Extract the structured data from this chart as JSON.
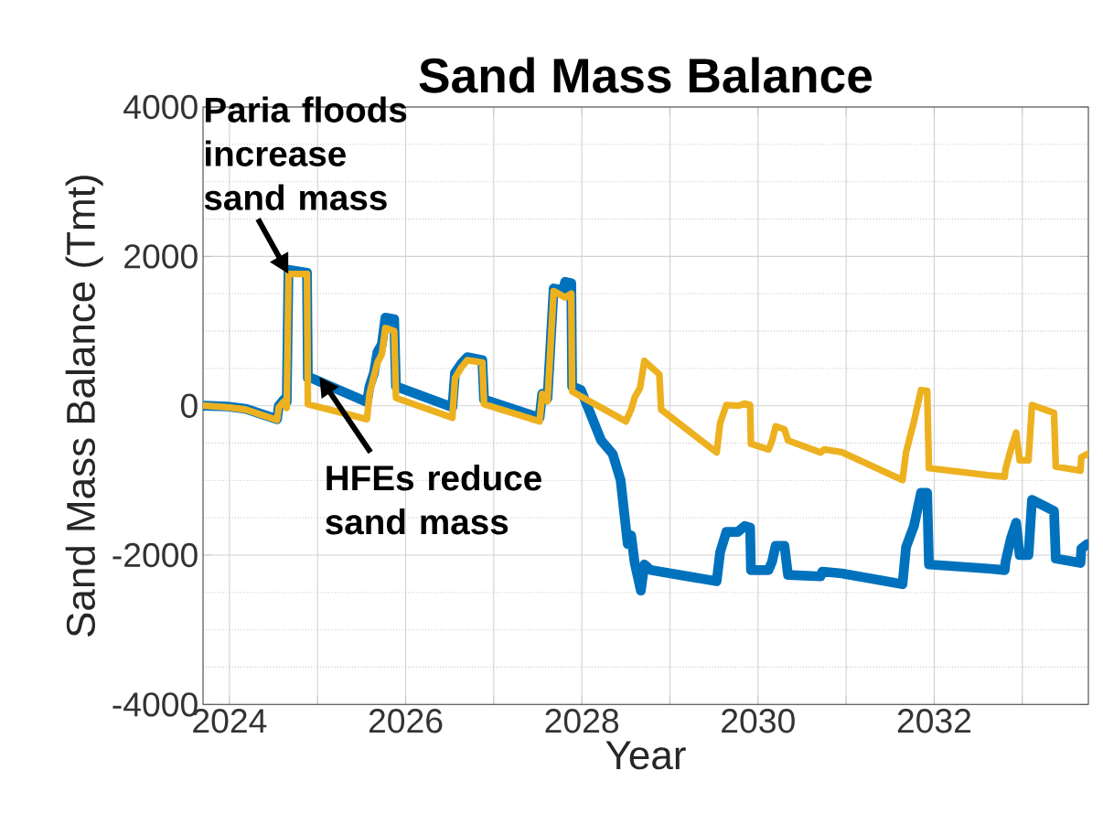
{
  "chart_data": {
    "type": "line",
    "title": "Sand Mass Balance",
    "xlabel": "Year",
    "ylabel": "Sand Mass Balance (Tmt)",
    "annotations": [
      {
        "text": "Paria floods increase sand mass",
        "x": 2024.67,
        "y": 1765
      },
      {
        "text": "HFEs reduce sand mass",
        "x": 2025.02,
        "y": 390
      }
    ],
    "series": [
      {
        "color": "#0072bd",
        "x": [
          2023.72,
          2023.98,
          2024.18,
          2024.54,
          2024.56,
          2024.62,
          2024.65,
          2024.67,
          2024.88,
          2024.89,
          2024.93,
          2025.56,
          2025.59,
          2025.64,
          2025.68,
          2025.73,
          2025.77,
          2025.87,
          2025.89,
          2026.53,
          2026.56,
          2026.63,
          2026.7,
          2026.87,
          2026.89,
          2027.52,
          2027.55,
          2027.61,
          2027.68,
          2027.79,
          2027.81,
          2027.88,
          2027.89,
          2027.99,
          2028.22,
          2028.35,
          2028.44,
          2028.52,
          2028.56,
          2028.6,
          2028.67,
          2028.71,
          2028.78,
          2029.53,
          2029.57,
          2029.64,
          2029.77,
          2029.85,
          2029.91,
          2029.92,
          2030.12,
          2030.16,
          2030.2,
          2030.3,
          2030.34,
          2030.71,
          2030.73,
          2030.95,
          2031.64,
          2031.68,
          2031.77,
          2031.85,
          2031.92,
          2031.94,
          2032.61,
          2032.8,
          2032.81,
          2032.87,
          2032.93,
          2032.97,
          2033.07,
          2033.11,
          2033.36,
          2033.38,
          2033.66,
          2033.67,
          2033.74
        ],
        "values": [
          0,
          -10,
          -40,
          -180,
          0,
          85,
          50,
          1820,
          1780,
          370,
          370,
          50,
          260,
          440,
          720,
          825,
          1180,
          1160,
          260,
          -20,
          440,
          560,
          650,
          610,
          85,
          -160,
          160,
          100,
          1570,
          1550,
          1660,
          1640,
          260,
          210,
          -465,
          -645,
          -995,
          -1850,
          -1735,
          -2105,
          -2475,
          -2125,
          -2200,
          -2350,
          -1960,
          -1690,
          -1690,
          -1610,
          -1630,
          -2200,
          -2200,
          -2085,
          -1875,
          -1875,
          -2265,
          -2285,
          -2220,
          -2245,
          -2390,
          -1895,
          -1610,
          -1165,
          -1165,
          -2125,
          -2180,
          -2200,
          -2085,
          -1780,
          -1565,
          -2000,
          -2000,
          -1260,
          -1410,
          -2045,
          -2105,
          -1915,
          -1850
        ]
      },
      {
        "color": "#edb120",
        "x": [
          2023.72,
          2023.98,
          2024.18,
          2024.54,
          2024.56,
          2024.62,
          2024.65,
          2024.67,
          2024.88,
          2024.89,
          2025.56,
          2025.59,
          2025.64,
          2025.68,
          2025.73,
          2025.77,
          2025.87,
          2025.89,
          2026.53,
          2026.56,
          2026.63,
          2026.7,
          2026.87,
          2026.89,
          2027.52,
          2027.55,
          2027.61,
          2027.68,
          2027.81,
          2027.88,
          2027.89,
          2028.5,
          2028.56,
          2028.6,
          2028.66,
          2028.71,
          2028.88,
          2028.9,
          2029.53,
          2029.57,
          2029.64,
          2029.78,
          2029.85,
          2029.91,
          2029.92,
          2030.12,
          2030.16,
          2030.2,
          2030.3,
          2030.34,
          2030.71,
          2030.75,
          2030.95,
          2031.64,
          2031.68,
          2031.77,
          2031.85,
          2031.92,
          2031.94,
          2032.61,
          2032.8,
          2032.81,
          2032.87,
          2032.93,
          2032.97,
          2033.07,
          2033.11,
          2033.36,
          2033.38,
          2033.66,
          2033.67,
          2033.74
        ],
        "values": [
          0,
          -20,
          -50,
          -190,
          -20,
          60,
          -30,
          1765,
          1765,
          20,
          -180,
          160,
          400,
          580,
          690,
          1040,
          1000,
          105,
          -160,
          370,
          510,
          610,
          580,
          20,
          -210,
          160,
          60,
          1535,
          1450,
          1500,
          190,
          -210,
          -50,
          115,
          235,
          600,
          420,
          -50,
          -625,
          -230,
          10,
          0,
          30,
          10,
          -510,
          -585,
          -465,
          -275,
          -315,
          -465,
          -625,
          -585,
          -620,
          -995,
          -625,
          -210,
          210,
          200,
          -835,
          -930,
          -950,
          -845,
          -585,
          -360,
          -730,
          -730,
          10,
          -95,
          -815,
          -870,
          -690,
          -645
        ]
      }
    ],
    "xlim": [
      2023.7,
      2033.75
    ],
    "ylim": [
      -4000,
      4000
    ],
    "xticks": [
      2024,
      {
        "value": 2025,
        "label": null
      },
      2026,
      {
        "value": 2027,
        "label": null
      },
      2028,
      {
        "value": 2029,
        "label": null
      },
      2030,
      {
        "value": 2031,
        "label": null
      },
      2032,
      {
        "value": 2033,
        "label": null
      }
    ],
    "yticks": [
      -4000,
      -2000,
      0,
      2000,
      4000
    ],
    "grid": true
  }
}
